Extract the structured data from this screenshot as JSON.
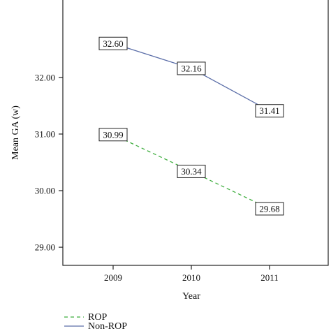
{
  "chart_data": {
    "type": "line",
    "xlabel": "Year",
    "ylabel": "Mean GA (w)",
    "categories": [
      "2009",
      "2010",
      "2011"
    ],
    "ylim": [
      28.68,
      33.43
    ],
    "yticks": [
      "29.00",
      "30.00",
      "31.00",
      "32.00"
    ],
    "grid": false,
    "legend_position": "bottom-left",
    "series": [
      {
        "name": "ROP",
        "values": [
          30.99,
          30.34,
          29.68
        ],
        "labels": [
          "30.99",
          "30.34",
          "29.68"
        ],
        "color": "#3fae3f",
        "style": "dashed"
      },
      {
        "name": "Non-ROP",
        "values": [
          32.6,
          32.16,
          31.41
        ],
        "labels": [
          "32.60",
          "32.16",
          "31.41"
        ],
        "color": "#5b6ea8",
        "style": "solid"
      }
    ]
  }
}
